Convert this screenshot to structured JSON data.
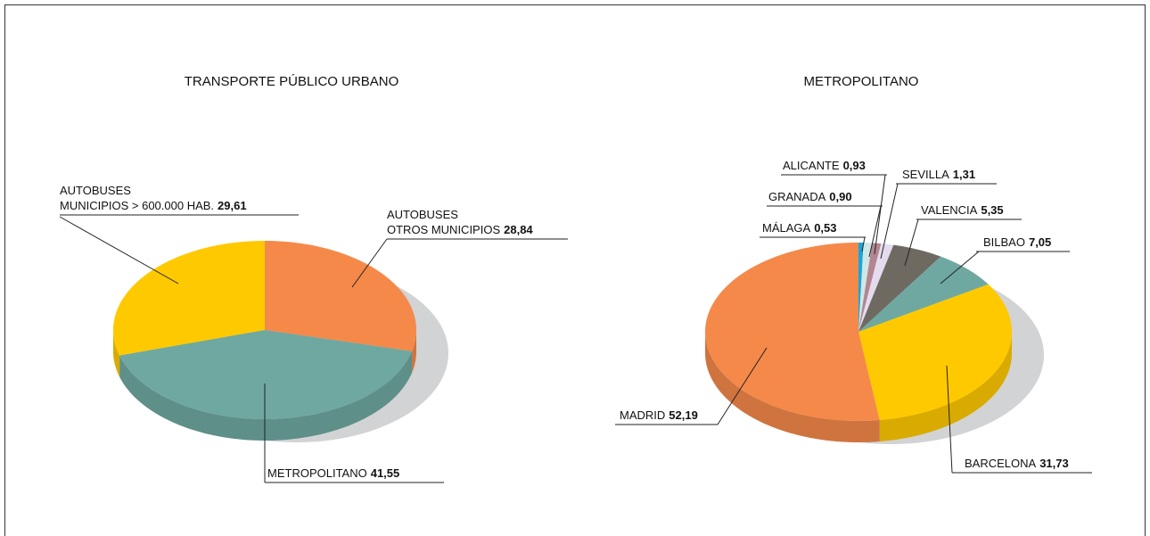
{
  "chart_data": [
    {
      "type": "pie",
      "title": "TRANSPORTE PÚBLICO URBANO",
      "categories": [
        "AUTOBUSES\nOTROS MUNICIPIOS",
        "METROPOLITANO",
        "AUTOBUSES\nMUNICIPIOS > 600.000 HAB."
      ],
      "values": [
        28.84,
        41.55,
        29.61
      ],
      "value_labels": [
        "28,84",
        "41,55",
        "29,61"
      ],
      "colors": [
        "#f5894a",
        "#6fa8a0",
        "#ffc900"
      ]
    },
    {
      "type": "pie",
      "title": "METROPOLITANO",
      "categories": [
        "MÁLAGA",
        "GRANADA",
        "ALICANTE",
        "SEVILLA",
        "VALENCIA",
        "BILBAO",
        "BARCELONA",
        "MADRID"
      ],
      "values": [
        0.53,
        0.9,
        0.93,
        1.31,
        5.35,
        7.05,
        31.73,
        52.19
      ],
      "value_labels": [
        "0,53",
        "0,90",
        "0,93",
        "1,31",
        "5,35",
        "7,05",
        "31,73",
        "52,19"
      ],
      "colors": [
        "#1aa6d9",
        "#cfe8e5",
        "#b3868f",
        "#e4dcee",
        "#6e6a62",
        "#6fa8a0",
        "#ffc900",
        "#f5894a"
      ]
    }
  ]
}
